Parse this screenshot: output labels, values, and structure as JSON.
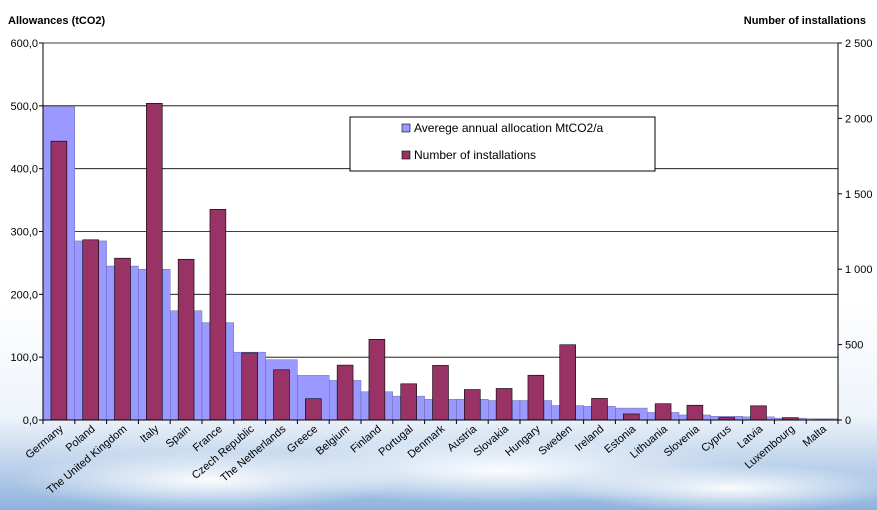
{
  "chart_data": {
    "type": "bar",
    "left_axis_title": "Allowances (tCO2)",
    "right_axis_title": "Number of installations",
    "categories": [
      "Germany",
      "Poland",
      "The United Kingdom",
      "Italy",
      "Spain",
      "France",
      "Czech Republic",
      "The Netherlands",
      "Greece",
      "Belgium",
      "Finland",
      "Portugal",
      "Denmark",
      "Austria",
      "Slovakia",
      "Hungary",
      "Sweden",
      "Ireland",
      "Estonia",
      "Lithuania",
      "Slovenia",
      "Cyprus",
      "Latvia",
      "Luxembourg",
      "Malta"
    ],
    "series": [
      {
        "name": "Averege annual allocation MtCO2/a",
        "axis": "left",
        "color": "#9999ff",
        "values": [
          499,
          285,
          245,
          240,
          174,
          155,
          108,
          96,
          71,
          63,
          45,
          38,
          33,
          33,
          31,
          31,
          23,
          22,
          19,
          12,
          8,
          6,
          5,
          3,
          2
        ]
      },
      {
        "name": "Number of installations",
        "axis": "right",
        "color": "#993366",
        "values": [
          1849,
          1195,
          1073,
          2100,
          1066,
          1397,
          445,
          333,
          141,
          364,
          535,
          240,
          362,
          202,
          209,
          297,
          499,
          143,
          40,
          108,
          98,
          16,
          94,
          16,
          2
        ]
      }
    ],
    "left_axis": {
      "min": 0,
      "max": 600,
      "ticks": [
        "0,0",
        "100,0",
        "200,0",
        "300,0",
        "400,0",
        "500,0",
        "600,0"
      ]
    },
    "right_axis": {
      "min": 0,
      "max": 2500,
      "ticks": [
        "0",
        "500",
        "1 000",
        "1 500",
        "2 000",
        "2 500"
      ]
    },
    "grid": true,
    "legend_position": "top-center"
  }
}
